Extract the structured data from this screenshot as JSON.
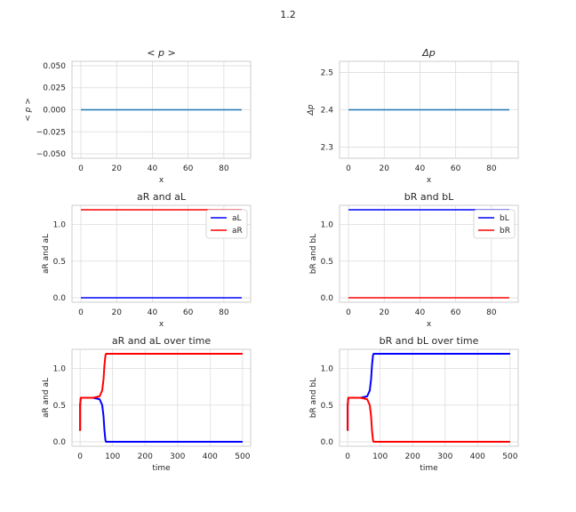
{
  "figure": {
    "suptitle": "1.2"
  },
  "chart_data": [
    {
      "type": "line",
      "title": "< p >",
      "xlabel": "x",
      "ylabel": "< p >",
      "xlim": [
        -5,
        95
      ],
      "ylim": [
        -0.055,
        0.055
      ],
      "xticks": [
        0,
        20,
        40,
        60,
        80
      ],
      "yticks": [
        -0.05,
        -0.025,
        0.0,
        0.025,
        0.05
      ],
      "xtick_labels": [
        "0",
        "20",
        "40",
        "60",
        "80"
      ],
      "ytick_labels": [
        "−0.050",
        "−0.025",
        "0.000",
        "0.025",
        "0.050"
      ],
      "grid": true,
      "series": [
        {
          "color": "#1f77b4",
          "x": [
            0,
            90
          ],
          "y": [
            0,
            0
          ]
        }
      ]
    },
    {
      "type": "line",
      "title": "Δp",
      "xlabel": "x",
      "ylabel": "Δp",
      "xlim": [
        -5,
        95
      ],
      "ylim": [
        2.27,
        2.53
      ],
      "xticks": [
        0,
        20,
        40,
        60,
        80
      ],
      "yticks": [
        2.3,
        2.4,
        2.5
      ],
      "xtick_labels": [
        "0",
        "20",
        "40",
        "60",
        "80"
      ],
      "ytick_labels": [
        "2.3",
        "2.4",
        "2.5"
      ],
      "grid": true,
      "series": [
        {
          "color": "#1f77b4",
          "x": [
            0,
            90
          ],
          "y": [
            2.4,
            2.4
          ]
        }
      ]
    },
    {
      "type": "line",
      "title": "aR and aL",
      "xlabel": "x",
      "ylabel": "aR and aL",
      "xlim": [
        -5,
        95
      ],
      "ylim": [
        -0.06,
        1.26
      ],
      "xticks": [
        0,
        20,
        40,
        60,
        80
      ],
      "yticks": [
        0.0,
        0.5,
        1.0
      ],
      "xtick_labels": [
        "0",
        "20",
        "40",
        "60",
        "80"
      ],
      "ytick_labels": [
        "0.0",
        "0.5",
        "1.0"
      ],
      "grid": true,
      "legend": "top-right",
      "series": [
        {
          "name": "aL",
          "color": "#0000ff",
          "x": [
            0,
            90
          ],
          "y": [
            0,
            0
          ]
        },
        {
          "name": "aR",
          "color": "#ff0000",
          "x": [
            0,
            90
          ],
          "y": [
            1.2,
            1.2
          ]
        }
      ]
    },
    {
      "type": "line",
      "title": "bR and bL",
      "xlabel": "x",
      "ylabel": "bR and bL",
      "xlim": [
        -5,
        95
      ],
      "ylim": [
        -0.06,
        1.26
      ],
      "xticks": [
        0,
        20,
        40,
        60,
        80
      ],
      "yticks": [
        0.0,
        0.5,
        1.0
      ],
      "xtick_labels": [
        "0",
        "20",
        "40",
        "60",
        "80"
      ],
      "ytick_labels": [
        "0.0",
        "0.5",
        "1.0"
      ],
      "grid": true,
      "legend": "top-right",
      "series": [
        {
          "name": "bL",
          "color": "#0000ff",
          "x": [
            0,
            90
          ],
          "y": [
            1.2,
            1.2
          ]
        },
        {
          "name": "bR",
          "color": "#ff0000",
          "x": [
            0,
            90
          ],
          "y": [
            0,
            0
          ]
        }
      ]
    },
    {
      "type": "line",
      "title": "aR and aL over time",
      "xlabel": "time",
      "ylabel": "aR and aL",
      "xlim": [
        -25,
        525
      ],
      "ylim": [
        -0.06,
        1.26
      ],
      "xticks": [
        0,
        100,
        200,
        300,
        400,
        500
      ],
      "yticks": [
        0.0,
        0.5,
        1.0
      ],
      "xtick_labels": [
        "0",
        "100",
        "200",
        "300",
        "400",
        "500"
      ],
      "ytick_labels": [
        "0.0",
        "0.5",
        "1.0"
      ],
      "grid": true,
      "series": [
        {
          "color": "#0000ff",
          "x": [
            0,
            0,
            2,
            40,
            60,
            68,
            72,
            75,
            78,
            80,
            85,
            100,
            200,
            300,
            400,
            500
          ],
          "y": [
            0.15,
            0.5,
            0.6,
            0.6,
            0.58,
            0.5,
            0.35,
            0.15,
            0.02,
            0.0,
            0.0,
            0.0,
            0.0,
            0.0,
            0.0,
            0.0
          ]
        },
        {
          "color": "#ff0000",
          "x": [
            0,
            0,
            2,
            40,
            60,
            68,
            72,
            75,
            78,
            80,
            85,
            100,
            200,
            300,
            400,
            500
          ],
          "y": [
            0.15,
            0.5,
            0.6,
            0.6,
            0.62,
            0.7,
            0.85,
            1.05,
            1.18,
            1.2,
            1.2,
            1.2,
            1.2,
            1.2,
            1.2,
            1.2
          ]
        }
      ]
    },
    {
      "type": "line",
      "title": "bR and bL over time",
      "xlabel": "time",
      "ylabel": "bR and bL",
      "xlim": [
        -25,
        525
      ],
      "ylim": [
        -0.06,
        1.26
      ],
      "xticks": [
        0,
        100,
        200,
        300,
        400,
        500
      ],
      "yticks": [
        0.0,
        0.5,
        1.0
      ],
      "xtick_labels": [
        "0",
        "100",
        "200",
        "300",
        "400",
        "500"
      ],
      "ytick_labels": [
        "0.0",
        "0.5",
        "1.0"
      ],
      "grid": true,
      "series": [
        {
          "color": "#0000ff",
          "x": [
            0,
            0,
            2,
            40,
            60,
            68,
            72,
            75,
            78,
            80,
            85,
            100,
            200,
            300,
            400,
            500
          ],
          "y": [
            0.15,
            0.5,
            0.6,
            0.6,
            0.62,
            0.7,
            0.85,
            1.05,
            1.18,
            1.2,
            1.2,
            1.2,
            1.2,
            1.2,
            1.2,
            1.2
          ]
        },
        {
          "color": "#ff0000",
          "x": [
            0,
            0,
            2,
            40,
            60,
            68,
            72,
            75,
            78,
            80,
            85,
            100,
            200,
            300,
            400,
            500
          ],
          "y": [
            0.15,
            0.5,
            0.6,
            0.6,
            0.58,
            0.5,
            0.35,
            0.15,
            0.02,
            0.0,
            0.0,
            0.0,
            0.0,
            0.0,
            0.0,
            0.0
          ]
        }
      ]
    }
  ]
}
